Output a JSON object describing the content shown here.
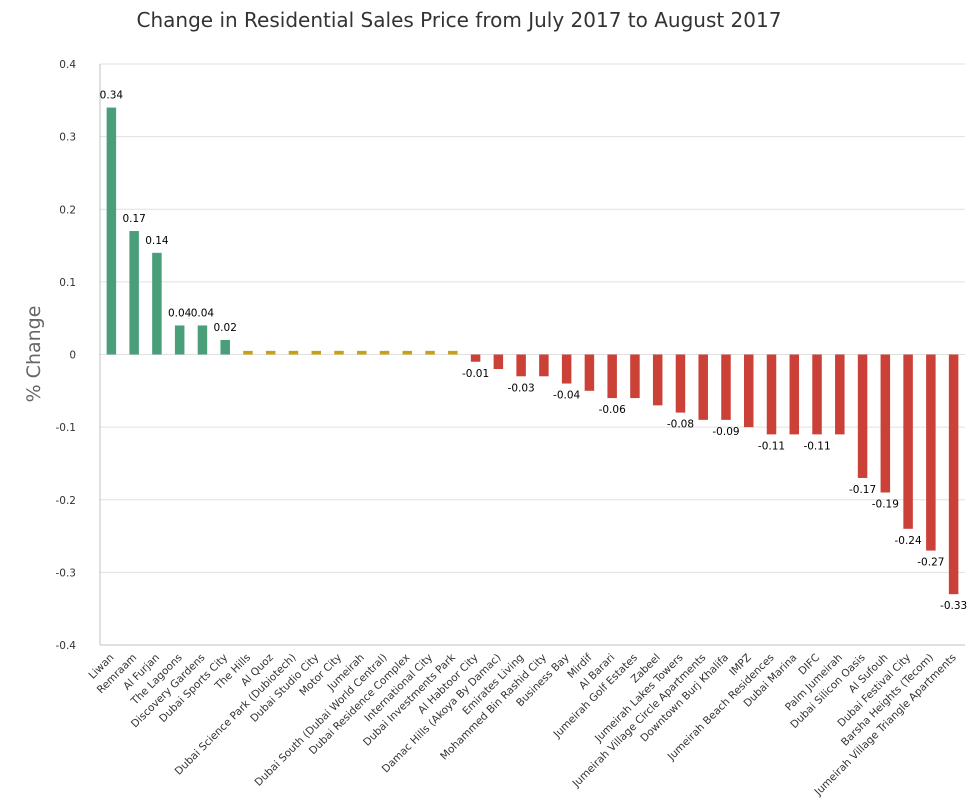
{
  "chart_data": {
    "type": "bar",
    "title": "Change in Residential Sales Price from July 2017 to August 2017",
    "xlabel": "",
    "ylabel": "% Change",
    "ylim": [
      -0.4,
      0.4
    ],
    "yticks": [
      "0.4",
      "0.3",
      "0.2",
      "0.1",
      "0",
      "-0.1",
      "-0.2",
      "-0.3",
      "-0.4"
    ],
    "grid": true,
    "legend": "none",
    "colors": {
      "positive": "#4a9e7a",
      "neutral": "#c9a012",
      "negative": "#cc4137"
    },
    "categories": [
      "Liwan",
      "Remraam",
      "Al Furjan",
      "The Lagoons",
      "Discovery Gardens",
      "Dubai Sports City",
      "The Hills",
      "Al Quoz",
      "Dubai Science Park (Dubiotech)",
      "Dubai Studio City",
      "Motor City",
      "Jumeirah",
      "Dubai South (Dubai World Central)",
      "Dubai Residence Complex",
      "International City",
      "Dubai Investments Park",
      "Al Habtoor City",
      "Damac Hills (Akoya By Damac)",
      "Emirates Living",
      "Mohammed Bin Rashid City",
      "Business Bay",
      "Mirdif",
      "Al Barari",
      "Jumeirah Golf Estates",
      "Zabeel",
      "Jumeirah Lakes Towers",
      "Jumeirah Village Circle Apartments",
      "Downtown Burj Khalifa",
      "IMPZ",
      "Jumeirah Beach Residences",
      "Dubai Marina",
      "DIFC",
      "Palm Jumeirah",
      "Dubai Silicon Oasis",
      "Al Sufouh",
      "Dubai Festival City",
      "Barsha Heights (Tecom)",
      "Jumeirah Village Triangle Apartments"
    ],
    "values": [
      0.34,
      0.17,
      0.14,
      0.04,
      0.04,
      0.02,
      0.005,
      0.005,
      0.005,
      0.005,
      0.005,
      0.005,
      0.005,
      0.005,
      0.005,
      0.005,
      -0.01,
      -0.02,
      -0.03,
      -0.03,
      -0.04,
      -0.05,
      -0.06,
      -0.06,
      -0.07,
      -0.08,
      -0.09,
      -0.09,
      -0.1,
      -0.11,
      -0.11,
      -0.11,
      -0.11,
      -0.17,
      -0.19,
      -0.24,
      -0.27,
      -0.33
    ],
    "data_labels": [
      "0.34",
      "0.17",
      "0.14",
      "0.04",
      "0.04",
      "0.02",
      "",
      "",
      "",
      "",
      "",
      "",
      "",
      "",
      "",
      "",
      "-0.01",
      "",
      "-0.03",
      "",
      "-0.04",
      "",
      "-0.06",
      "",
      "",
      "-0.08",
      "",
      "-0.09",
      "",
      "-0.11",
      "",
      "-0.11",
      "",
      "-0.17",
      "-0.19",
      "-0.24",
      "-0.27",
      "-0.33"
    ]
  }
}
